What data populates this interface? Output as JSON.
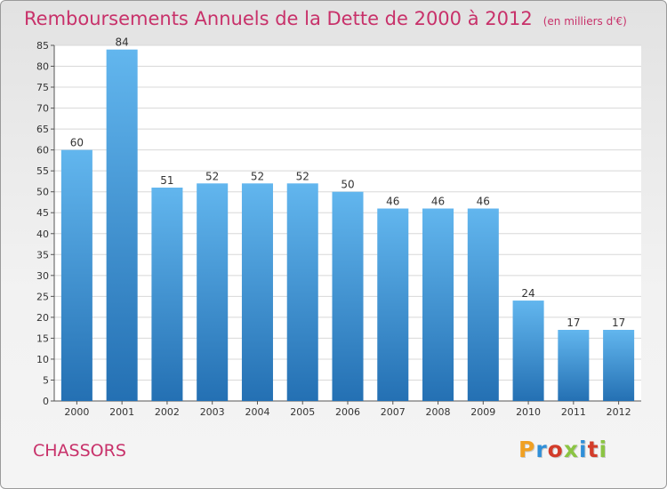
{
  "title": "Remboursements Annuels de la Dette de 2000 à 2012",
  "subtitle": "(en milliers d'€)",
  "town": "CHASSORS",
  "logo": {
    "letters": [
      "P",
      "r",
      "o",
      "x",
      "i",
      "t",
      "i"
    ],
    "colors": [
      "#f0a023",
      "#2f8fd8",
      "#d33c2a",
      "#8bc443",
      "#2f8fd8",
      "#d33c2a",
      "#8bc443"
    ]
  },
  "colors": {
    "title": "#c8316a",
    "bar_top": "#62b6ee",
    "bar_bottom": "#2470b3",
    "grid": "#d8d8d8"
  },
  "chart_data": {
    "type": "bar",
    "categories": [
      "2000",
      "2001",
      "2002",
      "2003",
      "2004",
      "2005",
      "2006",
      "2007",
      "2008",
      "2009",
      "2010",
      "2011",
      "2012"
    ],
    "values": [
      60,
      84,
      51,
      52,
      52,
      52,
      50,
      46,
      46,
      46,
      24,
      17,
      17
    ],
    "data_labels": [
      "60",
      "84",
      "51",
      "52",
      "52",
      "52",
      "50",
      "46",
      "46",
      "46",
      "24",
      "17",
      "17"
    ],
    "ylim": [
      0,
      85
    ],
    "yticks": [
      0,
      5,
      10,
      15,
      20,
      25,
      30,
      35,
      40,
      45,
      50,
      55,
      60,
      65,
      70,
      75,
      80,
      85
    ],
    "grid": true,
    "title": "Remboursements Annuels de la Dette de 2000 à 2012",
    "xlabel": "",
    "ylabel": ""
  }
}
